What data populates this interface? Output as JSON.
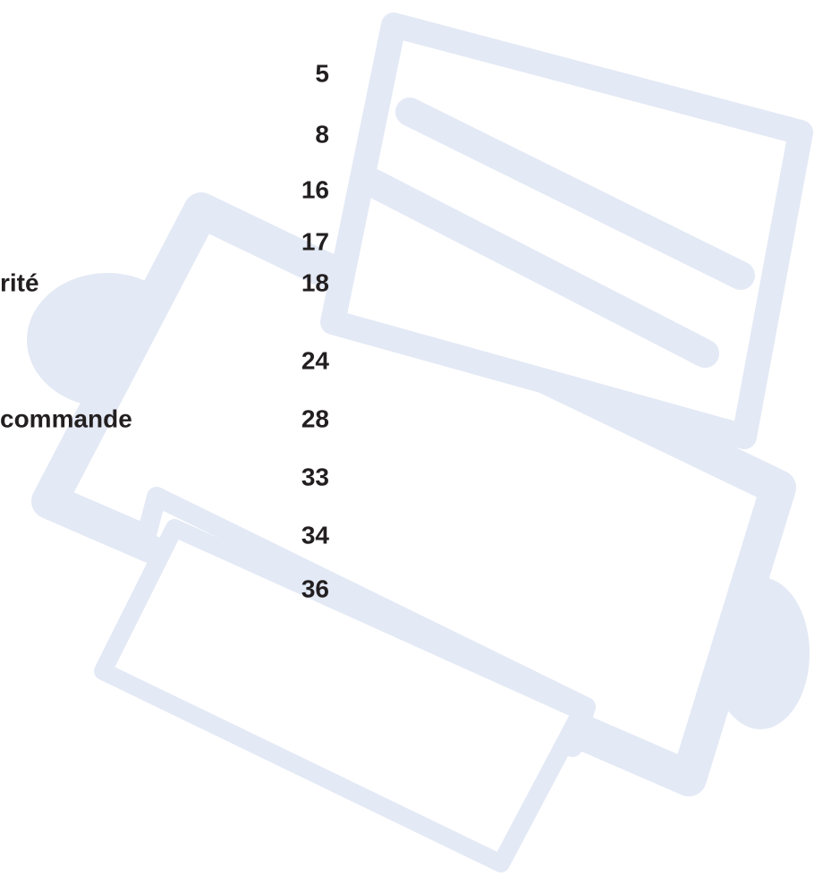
{
  "toc": {
    "entries": [
      {
        "page": 5
      },
      {
        "page": 8
      },
      {
        "page": 16
      },
      {
        "page": 17
      },
      {
        "title": "rité",
        "page": 18
      },
      {
        "page": 24
      },
      {
        "title": "commande",
        "page": 28
      },
      {
        "page": 33
      },
      {
        "page": 34
      },
      {
        "page": 36
      }
    ]
  }
}
